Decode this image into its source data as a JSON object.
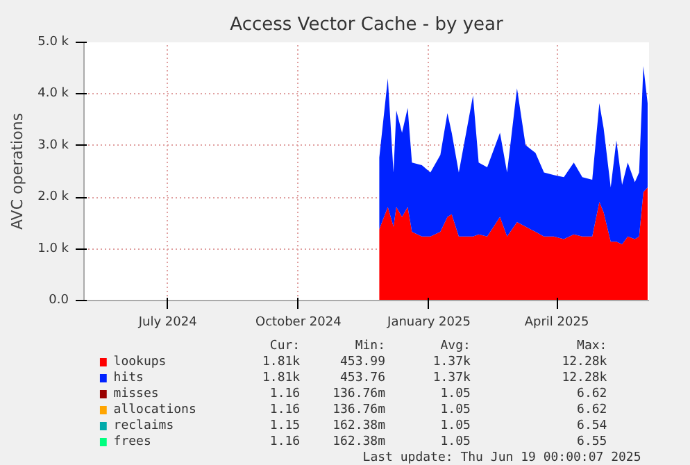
{
  "chart_data": {
    "type": "area",
    "stacked": true,
    "title": "Access Vector Cache - by year",
    "ylabel": "AVC operations",
    "x": [
      "2024-11-27",
      "2024-12-03",
      "2024-12-07",
      "2024-12-09",
      "2024-12-13",
      "2024-12-17",
      "2024-12-20",
      "2024-12-27",
      "2025-01-02",
      "2025-01-09",
      "2025-01-14",
      "2025-01-17",
      "2025-01-22",
      "2025-02-01",
      "2025-02-05",
      "2025-02-11",
      "2025-02-20",
      "2025-02-25",
      "2025-03-04",
      "2025-03-10",
      "2025-03-17",
      "2025-03-23",
      "2025-03-30",
      "2025-04-06",
      "2025-04-13",
      "2025-04-19",
      "2025-04-26",
      "2025-05-01",
      "2025-05-04",
      "2025-05-09",
      "2025-05-13",
      "2025-05-17",
      "2025-05-21",
      "2025-05-26",
      "2025-05-29",
      "2025-06-01",
      "2025-06-04"
    ],
    "series": [
      {
        "name": "lookups",
        "color": "#ff0000",
        "values": [
          1380,
          1810,
          1430,
          1810,
          1620,
          1810,
          1330,
          1240,
          1240,
          1330,
          1620,
          1670,
          1240,
          1240,
          1280,
          1240,
          1620,
          1240,
          1520,
          1430,
          1330,
          1240,
          1240,
          1190,
          1280,
          1240,
          1240,
          1910,
          1710,
          1140,
          1140,
          1090,
          1240,
          1190,
          1240,
          2100,
          2190
        ]
      },
      {
        "name": "hits",
        "color": "#0022ff",
        "values": [
          1390,
          2490,
          1050,
          1870,
          1630,
          1920,
          1340,
          1380,
          1240,
          1490,
          2010,
          1580,
          1240,
          2730,
          1390,
          1340,
          1630,
          1240,
          2590,
          1580,
          1530,
          1240,
          1190,
          1200,
          1390,
          1150,
          1100,
          1910,
          1630,
          1050,
          1960,
          1150,
          1430,
          1100,
          1240,
          2440,
          1630
        ]
      },
      {
        "name": "misses",
        "color": "#990000",
        "values": [
          null,
          null,
          null,
          null,
          null,
          null,
          null,
          null,
          null,
          null,
          null,
          null,
          null,
          null,
          null,
          null,
          null,
          null,
          null,
          null,
          null,
          null,
          null,
          null,
          null,
          null,
          null,
          null,
          null,
          null,
          null,
          null,
          null,
          null,
          null,
          null,
          null
        ]
      },
      {
        "name": "allocations",
        "color": "#ffa500",
        "values": [
          null,
          null,
          null,
          null,
          null,
          null,
          null,
          null,
          null,
          null,
          null,
          null,
          null,
          null,
          null,
          null,
          null,
          null,
          null,
          null,
          null,
          null,
          null,
          null,
          null,
          null,
          null,
          null,
          null,
          null,
          null,
          null,
          null,
          null,
          null,
          null,
          null
        ]
      },
      {
        "name": "reclaims",
        "color": "#00aaaa",
        "values": [
          null,
          null,
          null,
          null,
          null,
          null,
          null,
          null,
          null,
          null,
          null,
          null,
          null,
          null,
          null,
          null,
          null,
          null,
          null,
          null,
          null,
          null,
          null,
          null,
          null,
          null,
          null,
          null,
          null,
          null,
          null,
          null,
          null,
          null,
          null,
          null,
          null
        ]
      },
      {
        "name": "frees",
        "color": "#00ff7f",
        "values": [
          null,
          null,
          null,
          null,
          null,
          null,
          null,
          null,
          null,
          null,
          null,
          null,
          null,
          null,
          null,
          null,
          null,
          null,
          null,
          null,
          null,
          null,
          null,
          null,
          null,
          null,
          null,
          null,
          null,
          null,
          null,
          null,
          null,
          null,
          null,
          null,
          null
        ]
      }
    ],
    "xlim": [
      "2024-05-03",
      "2025-06-05"
    ],
    "xticks": [
      {
        "value": "2024-07-01",
        "label": "July 2024"
      },
      {
        "value": "2024-10-01",
        "label": "October 2024"
      },
      {
        "value": "2025-01-01",
        "label": "January 2025"
      },
      {
        "value": "2025-04-01",
        "label": "April 2025"
      }
    ],
    "ylim": [
      0,
      5000
    ],
    "yticks": [
      {
        "value": 0,
        "label": "0.0"
      },
      {
        "value": 1000,
        "label": "1.0 k"
      },
      {
        "value": 2000,
        "label": "2.0 k"
      },
      {
        "value": 3000,
        "label": "3.0 k"
      },
      {
        "value": 4000,
        "label": "4.0 k"
      },
      {
        "value": 5000,
        "label": "5.0 k"
      }
    ],
    "grid": true,
    "legend": "bottom",
    "annotations": [
      "Cur:",
      "Min:",
      "Avg:",
      "Max:",
      "1.81k",
      "453.99",
      "1.37k",
      "12.28k",
      "1.81k",
      "453.76",
      "1.37k",
      "12.28k",
      "1.16",
      "136.76m",
      "1.05",
      "6.62",
      "1.16",
      "136.76m",
      "1.05",
      "6.62",
      "1.15",
      "162.38m",
      "1.05",
      "6.54",
      "1.16",
      "162.38m",
      "1.05",
      "6.55",
      "Last update: Thu Jun 19 00:00:07 2025"
    ]
  }
}
